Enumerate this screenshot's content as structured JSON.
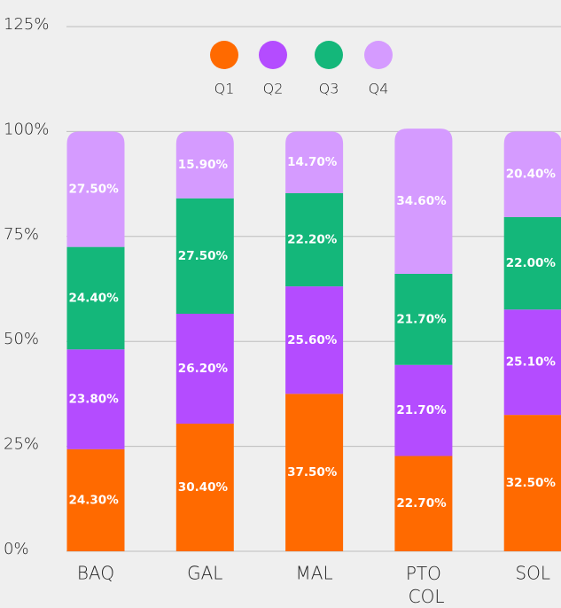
{
  "chart_data": {
    "type": "stacked_bar",
    "categories": [
      "BAQ",
      "GAL",
      "MAL",
      "PTO COL",
      "SOL"
    ],
    "series": [
      {
        "name": "Q1",
        "color": "#ff6a00",
        "values": [
          24.3,
          30.4,
          37.5,
          22.7,
          32.5
        ],
        "value_labels": [
          "24.30%",
          "30.40%",
          "37.50%",
          "22.70%",
          "32.50%"
        ]
      },
      {
        "name": "Q2",
        "color": "#b44cff",
        "values": [
          23.8,
          26.2,
          25.6,
          21.7,
          25.1
        ],
        "value_labels": [
          "23.80%",
          "26.20%",
          "25.60%",
          "21.70%",
          "25.10%"
        ]
      },
      {
        "name": "Q3",
        "color": "#14b77a",
        "values": [
          24.4,
          27.5,
          22.2,
          21.7,
          22.0
        ],
        "value_labels": [
          "24.40%",
          "27.50%",
          "22.20%",
          "21.70%",
          "22.00%"
        ]
      },
      {
        "name": "Q4",
        "color": "#d59bff",
        "values": [
          27.5,
          15.9,
          14.7,
          34.6,
          20.4
        ],
        "value_labels": [
          "27.50%",
          "15.90%",
          "14.70%",
          "34.60%",
          "20.40%"
        ]
      }
    ],
    "ylim": [
      0,
      125
    ],
    "yticks": [
      {
        "value": 0,
        "label": "0%"
      },
      {
        "value": 25,
        "label": "25%"
      },
      {
        "value": 50,
        "label": "50%"
      },
      {
        "value": 75,
        "label": "75%"
      },
      {
        "value": 100,
        "label": "100%"
      },
      {
        "value": 125,
        "label": "125%"
      }
    ],
    "grid": true,
    "legend": "top"
  }
}
